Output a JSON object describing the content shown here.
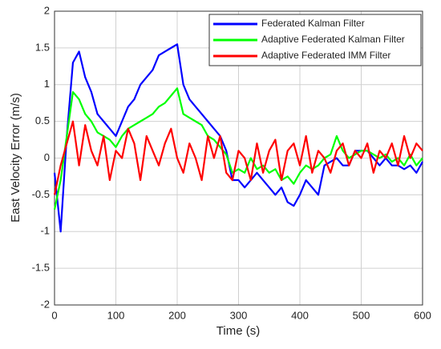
{
  "chart_data": {
    "type": "line",
    "xlabel": "Time (s)",
    "ylabel": "East Velocity Error (m/s)",
    "x": [
      0,
      10,
      20,
      30,
      40,
      50,
      60,
      70,
      80,
      90,
      100,
      110,
      120,
      130,
      140,
      150,
      160,
      170,
      180,
      190,
      200,
      210,
      220,
      230,
      240,
      250,
      260,
      270,
      280,
      290,
      300,
      310,
      320,
      330,
      340,
      350,
      360,
      370,
      380,
      390,
      400,
      410,
      420,
      430,
      440,
      450,
      460,
      470,
      480,
      490,
      500,
      510,
      520,
      530,
      540,
      550,
      560,
      570,
      580,
      590,
      600
    ],
    "series": [
      {
        "name": "Federated Kalman Filter",
        "color": "#0000ff",
        "values": [
          -0.2,
          -1.0,
          0.3,
          1.3,
          1.45,
          1.1,
          0.9,
          0.6,
          0.5,
          0.4,
          0.3,
          0.5,
          0.7,
          0.8,
          1.0,
          1.1,
          1.2,
          1.4,
          1.45,
          1.5,
          1.55,
          1.0,
          0.8,
          0.7,
          0.6,
          0.5,
          0.4,
          0.3,
          0.1,
          -0.3,
          -0.3,
          -0.4,
          -0.3,
          -0.2,
          -0.3,
          -0.4,
          -0.5,
          -0.4,
          -0.6,
          -0.65,
          -0.5,
          -0.3,
          -0.4,
          -0.5,
          -0.1,
          -0.05,
          0.0,
          -0.1,
          -0.1,
          0.1,
          0.1,
          0.1,
          0.0,
          -0.1,
          0.0,
          -0.1,
          -0.1,
          -0.15,
          -0.1,
          -0.2,
          -0.05
        ]
      },
      {
        "name": "Adaptive Federated Kalman Filter",
        "color": "#00ff00",
        "values": [
          -0.7,
          -0.3,
          0.3,
          0.9,
          0.8,
          0.6,
          0.5,
          0.35,
          0.3,
          0.25,
          0.15,
          0.3,
          0.4,
          0.45,
          0.5,
          0.55,
          0.6,
          0.7,
          0.75,
          0.85,
          0.95,
          0.6,
          0.55,
          0.5,
          0.45,
          0.3,
          0.25,
          0.15,
          0.05,
          -0.2,
          -0.15,
          -0.2,
          0.0,
          -0.15,
          -0.1,
          -0.2,
          -0.15,
          -0.3,
          -0.25,
          -0.35,
          -0.2,
          -0.1,
          -0.15,
          -0.1,
          0.0,
          0.05,
          0.3,
          0.1,
          0.0,
          0.05,
          0.1,
          0.1,
          0.05,
          0.0,
          0.05,
          -0.05,
          0.0,
          -0.1,
          0.05,
          -0.1,
          0.0
        ]
      },
      {
        "name": "Adaptive Federated IMM Filter",
        "color": "#ff0000",
        "values": [
          -0.5,
          -0.1,
          0.2,
          0.5,
          -0.1,
          0.45,
          0.1,
          -0.1,
          0.3,
          -0.3,
          0.1,
          0.0,
          0.4,
          0.2,
          -0.3,
          0.3,
          0.1,
          -0.1,
          0.2,
          0.4,
          0.0,
          -0.2,
          0.2,
          0.0,
          -0.3,
          0.3,
          0.0,
          0.3,
          -0.2,
          -0.3,
          0.1,
          0.0,
          -0.3,
          0.2,
          -0.2,
          0.1,
          0.25,
          -0.3,
          0.1,
          0.2,
          -0.1,
          0.3,
          -0.2,
          0.1,
          0.0,
          -0.2,
          0.1,
          0.2,
          -0.1,
          0.1,
          0.0,
          0.2,
          -0.2,
          0.1,
          0.0,
          0.2,
          -0.1,
          0.3,
          0.0,
          0.2,
          0.1
        ]
      }
    ],
    "xlim": [
      0,
      600
    ],
    "xticks": [
      0,
      100,
      200,
      300,
      400,
      500,
      600
    ],
    "ylim": [
      -2,
      2
    ],
    "yticks": [
      -2,
      -1.5,
      -1,
      -0.5,
      0,
      0.5,
      1,
      1.5,
      2
    ],
    "grid": true,
    "legend": "top-right"
  }
}
